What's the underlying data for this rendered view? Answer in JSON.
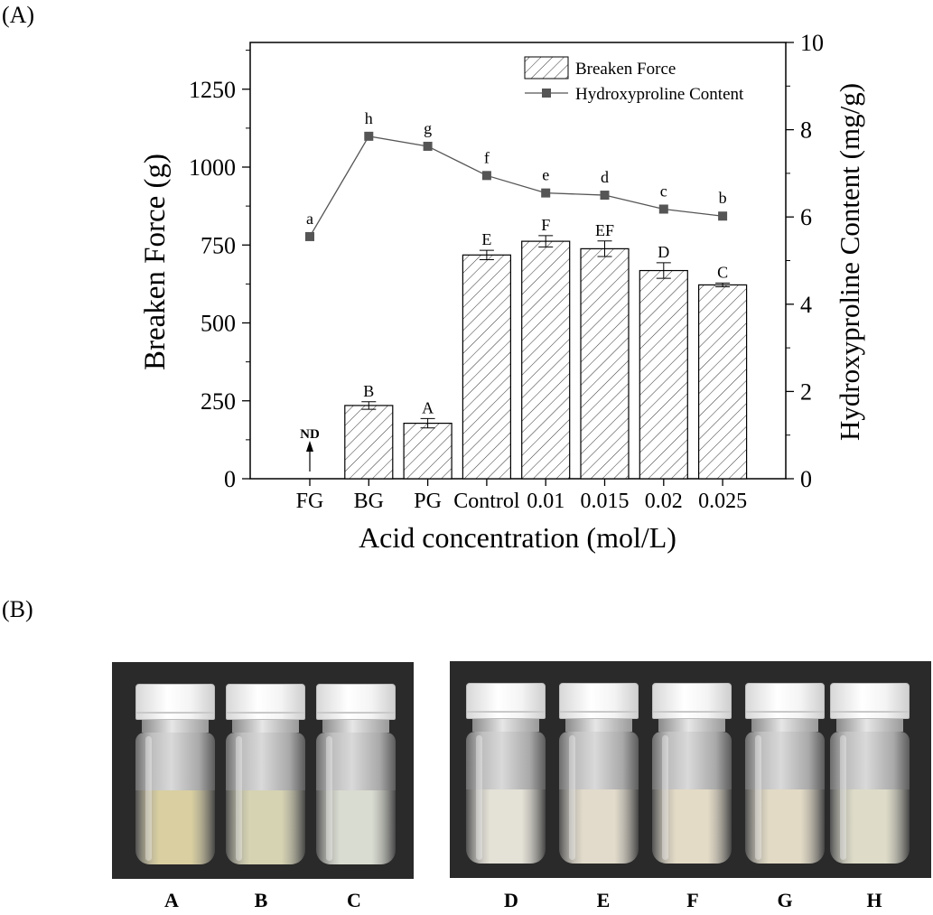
{
  "panel_a_label": "(A)",
  "panel_b_label": "(B)",
  "chart_data": {
    "type": "bar",
    "categories": [
      "FG",
      "BG",
      "PG",
      "Control",
      "0.01",
      "0.015",
      "0.02",
      "0.025"
    ],
    "xlabel": "Acid concentration (mol/L)",
    "ylabel": "Breaken Force (g)",
    "y2label": "Hydroxyproline Content (mg/g)",
    "ylim": [
      0,
      1400
    ],
    "y2lim": [
      0,
      10
    ],
    "yticks": [
      0,
      250,
      500,
      750,
      1000,
      1250
    ],
    "y2ticks": [
      0,
      2,
      4,
      6,
      8,
      10
    ],
    "series": [
      {
        "name": "Breaken Force",
        "kind": "bar",
        "pattern": "hatched",
        "values": [
          null,
          235,
          178,
          718,
          762,
          738,
          668,
          622
        ],
        "errors": [
          null,
          12,
          15,
          15,
          18,
          25,
          25,
          6
        ],
        "letters": [
          "",
          "B",
          "A",
          "E",
          "F",
          "EF",
          "D",
          "C"
        ]
      },
      {
        "name": "Hydroxyproline Content",
        "kind": "line",
        "color": "#555555",
        "values": [
          5.55,
          7.85,
          7.62,
          6.95,
          6.55,
          6.5,
          6.18,
          6.02
        ],
        "letters": [
          "a",
          "h",
          "g",
          "f",
          "e",
          "d",
          "c",
          "b"
        ]
      }
    ],
    "annotations": [
      {
        "category": "FG",
        "text": "ND"
      }
    ],
    "legend_position": "top-right"
  },
  "photo_panel": {
    "vials": [
      {
        "label": "A",
        "liquid_color": "#d9cfa0"
      },
      {
        "label": "B",
        "liquid_color": "#d6d3b2"
      },
      {
        "label": "C",
        "liquid_color": "#d9dcd0"
      },
      {
        "label": "D",
        "liquid_color": "#e4e1d6"
      },
      {
        "label": "E",
        "liquid_color": "#e2dbcb"
      },
      {
        "label": "F",
        "liquid_color": "#e4dbc6"
      },
      {
        "label": "G",
        "liquid_color": "#e2dac4"
      },
      {
        "label": "H",
        "liquid_color": "#dedcc8"
      }
    ]
  }
}
